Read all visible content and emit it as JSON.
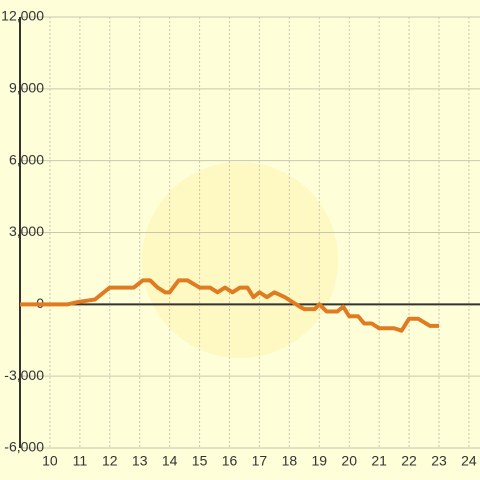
{
  "chart_data": {
    "type": "line",
    "x": [
      9.0,
      10.6,
      10.95,
      11.5,
      12.0,
      12.8,
      13.1,
      13.35,
      13.6,
      13.85,
      14.0,
      14.3,
      14.6,
      15.0,
      15.35,
      15.6,
      15.85,
      16.1,
      16.35,
      16.6,
      16.8,
      17.0,
      17.25,
      17.5,
      17.85,
      18.35,
      18.5,
      18.85,
      19.0,
      19.25,
      19.6,
      19.8,
      20.0,
      20.3,
      20.5,
      20.75,
      21.0,
      21.5,
      21.75,
      22.0,
      22.3,
      22.7,
      23.0
    ],
    "series": [
      {
        "color": "#e07b22",
        "values": [
          0,
          0,
          100,
          200,
          700,
          700,
          1000,
          1000,
          700,
          500,
          500,
          1000,
          1000,
          700,
          700,
          500,
          700,
          500,
          700,
          700,
          300,
          500,
          300,
          500,
          300,
          -100,
          -200,
          -200,
          0,
          -300,
          -300,
          -100,
          -500,
          -500,
          -800,
          -800,
          -1000,
          -1000,
          -1100,
          -600,
          -600,
          -900,
          -900
        ]
      }
    ],
    "xlim": [
      9,
      24.37
    ],
    "xticks": [
      10,
      11,
      12,
      13,
      14,
      15,
      16,
      17,
      18,
      19,
      20,
      21,
      22,
      23,
      24
    ],
    "ylim": [
      -6000,
      12000
    ],
    "yticks": [
      {
        "value": -6000,
        "label": "-6,000"
      },
      {
        "value": -3000,
        "label": "-3,000"
      },
      0,
      {
        "value": 3000,
        "label": "3,000"
      },
      {
        "value": 6000,
        "label": "6,000"
      },
      {
        "value": 9000,
        "label": "9,000"
      },
      {
        "value": 12000,
        "label": "12,000"
      }
    ],
    "grid": true
  }
}
